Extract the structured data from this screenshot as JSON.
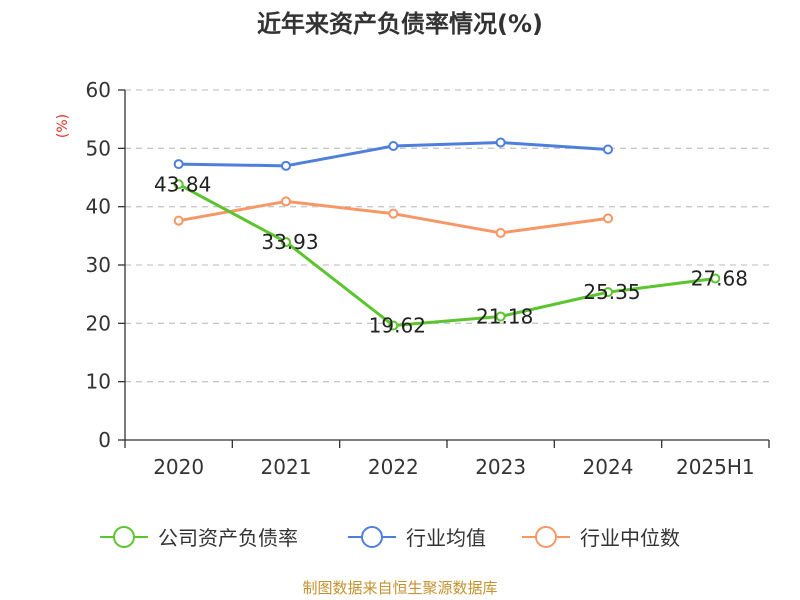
{
  "colors": {
    "company": "#5cc42e",
    "average": "#4f7fdc",
    "median": "#f79765",
    "unit": "#e0302a",
    "source": "#c6922f",
    "grid": "#c8c8c8",
    "axis": "#333333"
  },
  "chart_data": {
    "type": "line",
    "title": "近年来资产负债率情况(%)",
    "ylabel": "(%)",
    "categories": [
      "2020",
      "2021",
      "2022",
      "2023",
      "2024",
      "2025H1"
    ],
    "y_ticks": [
      "0",
      "10",
      "20",
      "30",
      "40",
      "50",
      "60"
    ],
    "ylim": [
      0,
      60
    ],
    "grid": true,
    "legend_position": "bottom",
    "series": [
      {
        "name": "公司资产负债率",
        "values": [
          43.84,
          33.93,
          19.62,
          21.18,
          25.35,
          27.68
        ],
        "labels": [
          "43.84",
          "33.93",
          "19.62",
          "21.18",
          "25.35",
          "27.68"
        ]
      },
      {
        "name": "行业均值",
        "values": [
          47.3,
          47.0,
          50.4,
          51.0,
          49.8,
          null
        ]
      },
      {
        "name": "行业中位数",
        "values": [
          37.6,
          40.9,
          38.8,
          35.5,
          38.0,
          null
        ]
      }
    ]
  },
  "source": "制图数据来自恒生聚源数据库"
}
